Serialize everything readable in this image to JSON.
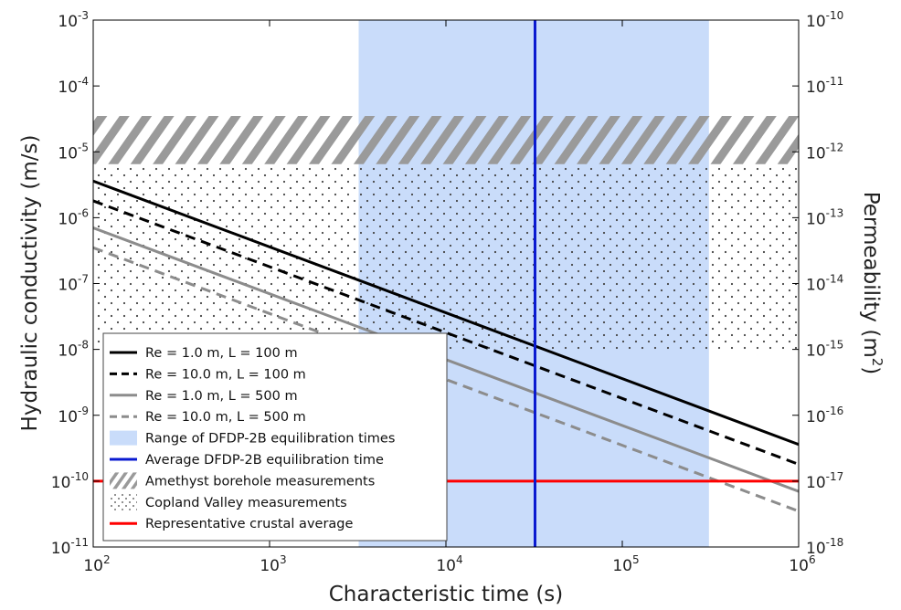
{
  "chart_data": {
    "type": "line",
    "xlabel": "Characteristic time (s)",
    "ylabel": "Hydraulic conductivity (m/s)",
    "y2label_text": "Permeability (m",
    "y2label_sup": "2",
    "y2label_close": ")",
    "xscale": "log",
    "yscale": "log",
    "xlim": [
      100,
      1000000
    ],
    "ylim": [
      1e-11,
      0.001
    ],
    "y2lim": [
      1e-18,
      1e-10
    ],
    "grid": false,
    "legend_position": "bottom-left",
    "x_ticks": [
      {
        "value": 100,
        "base": "10",
        "exp": "2"
      },
      {
        "value": 1000,
        "base": "10",
        "exp": "3"
      },
      {
        "value": 10000,
        "base": "10",
        "exp": "4"
      },
      {
        "value": 100000,
        "base": "10",
        "exp": "5"
      },
      {
        "value": 1000000,
        "base": "10",
        "exp": "6"
      }
    ],
    "y_ticks": [
      {
        "value": 1e-11,
        "base": "10",
        "exp": "-11"
      },
      {
        "value": 1e-10,
        "base": "10",
        "exp": "-10"
      },
      {
        "value": 1e-09,
        "base": "10",
        "exp": "-9"
      },
      {
        "value": 1e-08,
        "base": "10",
        "exp": "-8"
      },
      {
        "value": 1e-07,
        "base": "10",
        "exp": "-7"
      },
      {
        "value": 1e-06,
        "base": "10",
        "exp": "-6"
      },
      {
        "value": 1e-05,
        "base": "10",
        "exp": "-5"
      },
      {
        "value": 0.0001,
        "base": "10",
        "exp": "-4"
      },
      {
        "value": 0.001,
        "base": "10",
        "exp": "-3"
      }
    ],
    "y2_ticks": [
      {
        "value": 1e-18,
        "base": "10",
        "exp": "-18"
      },
      {
        "value": 1e-17,
        "base": "10",
        "exp": "-17"
      },
      {
        "value": 1e-16,
        "base": "10",
        "exp": "-16"
      },
      {
        "value": 1e-15,
        "base": "10",
        "exp": "-15"
      },
      {
        "value": 1e-14,
        "base": "10",
        "exp": "-14"
      },
      {
        "value": 1e-13,
        "base": "10",
        "exp": "-13"
      },
      {
        "value": 1e-12,
        "base": "10",
        "exp": "-12"
      },
      {
        "value": 1e-11,
        "base": "10",
        "exp": "-11"
      },
      {
        "value": 1e-10,
        "base": "10",
        "exp": "-10"
      }
    ],
    "series": [
      {
        "name": "Re = 1.0 m, L = 100 m",
        "color": "#000000",
        "dash": "solid",
        "x": [
          100,
          1000000
        ],
        "y": [
          3.6e-06,
          3.6e-10
        ]
      },
      {
        "name": "Re = 10.0 m, L = 100 m",
        "color": "#000000",
        "dash": "dashed",
        "x": [
          100,
          1000000
        ],
        "y": [
          1.8e-06,
          1.8e-10
        ]
      },
      {
        "name": "Re = 1.0 m, L = 500 m",
        "color": "#8c8c8c",
        "dash": "solid",
        "x": [
          100,
          1000000
        ],
        "y": [
          7e-07,
          7e-11
        ]
      },
      {
        "name": "Re = 10.0 m, L = 500 m",
        "color": "#8c8c8c",
        "dash": "dashed",
        "x": [
          100,
          1000000
        ],
        "y": [
          3.5e-07,
          3.5e-11
        ]
      }
    ],
    "range_band": {
      "name": "Range of DFDP-2B equilibration times",
      "color": "#c9dcfa",
      "x_min": 3200,
      "x_max": 310000
    },
    "vertical_line": {
      "name": "Average DFDP-2B equilibration time",
      "color": "#0a1ad0",
      "x": 32000
    },
    "hatched_band": {
      "name": "Amethyst borehole measurements",
      "color": "#9a9a9a",
      "y_min": 6.5e-06,
      "y_max": 3.5e-05
    },
    "dotted_band": {
      "name": "Copland Valley measurements",
      "color": "#444444",
      "y_min": 1e-08,
      "y_max": 6.5e-06
    },
    "horizontal_line": {
      "name": "Representative crustal average",
      "color": "#ff0000",
      "y": 1e-10
    }
  }
}
